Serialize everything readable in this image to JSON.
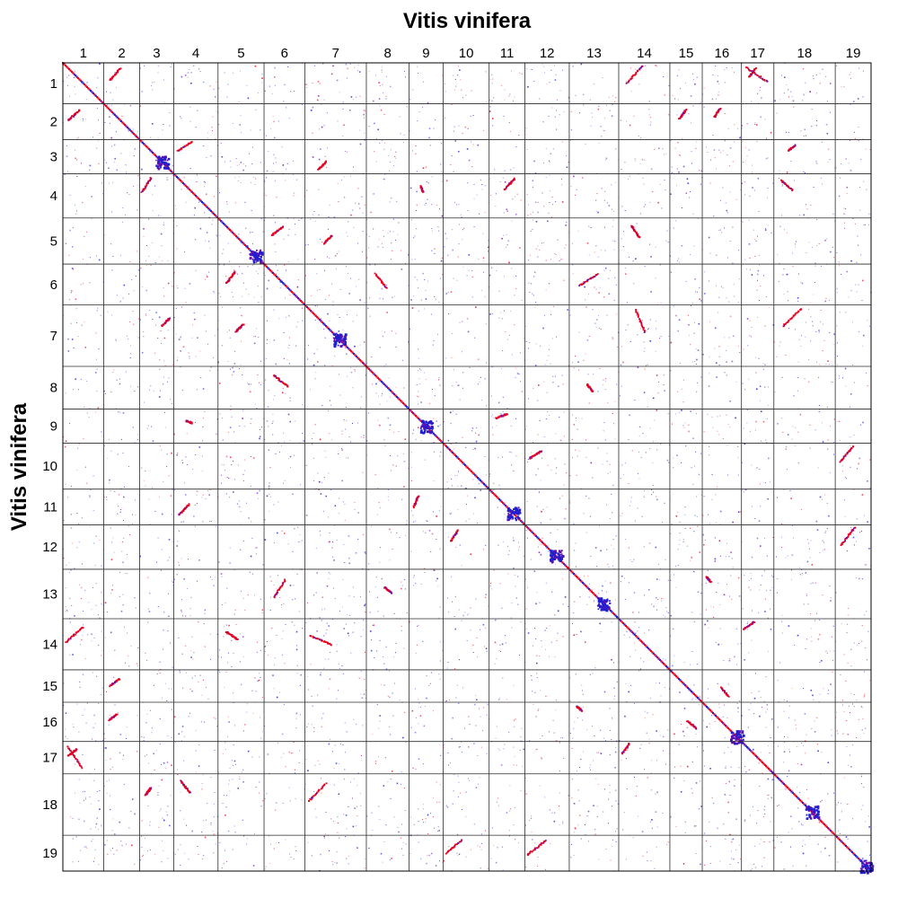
{
  "chart_data": {
    "type": "dotplot",
    "title": "Vitis vinifera",
    "xlabel": "",
    "ylabel": "Vitis vinifera",
    "chromosomes": [
      {
        "name": "1",
        "size": 24
      },
      {
        "name": "2",
        "size": 21
      },
      {
        "name": "3",
        "size": 20
      },
      {
        "name": "4",
        "size": 26
      },
      {
        "name": "5",
        "size": 27
      },
      {
        "name": "6",
        "size": 24
      },
      {
        "name": "7",
        "size": 36
      },
      {
        "name": "8",
        "size": 25
      },
      {
        "name": "9",
        "size": 20
      },
      {
        "name": "10",
        "size": 27
      },
      {
        "name": "11",
        "size": 21
      },
      {
        "name": "12",
        "size": 26
      },
      {
        "name": "13",
        "size": 29
      },
      {
        "name": "14",
        "size": 30
      },
      {
        "name": "15",
        "size": 19
      },
      {
        "name": "16",
        "size": 23
      },
      {
        "name": "17",
        "size": 19
      },
      {
        "name": "18",
        "size": 36
      },
      {
        "name": "19",
        "size": 21
      }
    ],
    "blocks": [
      {
        "x": [
          4.4,
          13.3
        ],
        "y": [
          11.4,
          1.4
        ]
      },
      {
        "x": [
          4.1,
          7.8
        ],
        "y": [
          7.8,
          2.8
        ]
      },
      {
        "x": [
          5.0,
          9.0
        ],
        "y": [
          8.5,
          3.2
        ]
      },
      {
        "x": [
          6.8,
          10.0
        ],
        "y": [
          7.2,
          2.5
        ]
      },
      {
        "x": [
          7.4,
          12.0
        ],
        "y": [
          17.2,
          12.5
        ]
      },
      {
        "x": [
          8.0,
          12.0
        ],
        "y": [
          6.0,
          3.0
        ]
      },
      {
        "x": [
          6.5,
          7.8
        ],
        "y": [
          6.8,
          10.5
        ]
      },
      {
        "x": [
          8.5,
          14.5
        ],
        "y": [
          8.8,
          2.5
        ]
      },
      {
        "x": [
          3.8,
          10.5
        ],
        "y": [
          3.5,
          9.2
        ]
      },
      {
        "x": [
          10.8,
          15.2
        ],
        "y": [
          14.5,
          10.0
        ]
      },
      {
        "x": [
          7.2,
          11.8
        ],
        "y": [
          4.2,
          11.2
        ]
      },
      {
        "x": [
          4.8,
          11.3
        ],
        "y": [
          5.2,
          13.5
        ]
      },
      {
        "x": [
          5.8,
          16.0
        ],
        "y": [
          12.0,
          5.5
        ]
      },
      {
        "x": [
          9.5,
          14.8
        ],
        "y": [
          2.5,
          15.2
        ]
      },
      {
        "x": [
          5.0,
          15.5
        ],
        "y": [
          11.8,
          1.8
        ]
      },
      {
        "x": [
          10.0,
          13.4
        ],
        "y": [
          10.2,
          14.2
        ]
      },
      {
        "x": [
          3.5,
          10.0
        ],
        "y": [
          5.0,
          2.4
        ]
      },
      {
        "x": [
          2.5,
          9.0
        ],
        "y": [
          8.5,
          4.2
        ]
      },
      {
        "x": [
          2.3,
          10.0
        ],
        "y": [
          10.5,
          1.5
        ]
      },
      {
        "x": [
          2.8,
          11.2
        ],
        "y": [
          11.5,
          0.8
        ]
      },
      {
        "x": [
          1.0,
          6.8
        ],
        "y": [
          5.8,
          1.5
        ]
      },
      {
        "x": [
          2.0,
          10.4
        ],
        "y": [
          6.2,
          0.9
        ]
      },
      {
        "x": [
          2.2,
          10.8
        ],
        "y": [
          2.3,
          15.0
        ]
      },
      {
        "x": [
          10.5,
          15.0
        ],
        "y": [
          9.8,
          15.2
        ]
      },
      {
        "x": [
          4.5,
          9.5
        ],
        "y": [
          10.8,
          4.2
        ]
      },
      {
        "x": [
          2.8,
          9.5
        ],
        "y": [
          9.2,
          3.3
        ]
      },
      {
        "x": [
          4.0,
          7.0
        ],
        "y": [
          2.0,
          4.5
        ]
      }
    ],
    "block_pairs": [
      [
        1,
        14
      ],
      [
        1,
        17
      ],
      [
        2,
        15
      ],
      [
        2,
        16
      ],
      [
        3,
        7
      ],
      [
        3,
        18
      ],
      [
        4,
        9
      ],
      [
        4,
        11
      ],
      [
        4,
        18
      ],
      [
        5,
        7
      ],
      [
        5,
        14
      ],
      [
        6,
        8
      ],
      [
        6,
        13
      ],
      [
        7,
        14
      ],
      [
        7,
        18
      ],
      [
        8,
        13
      ],
      [
        9,
        11
      ],
      [
        10,
        12
      ],
      [
        10,
        19
      ],
      [
        12,
        19
      ],
      [
        14,
        17
      ],
      [
        3,
        4
      ],
      [
        17,
        1
      ],
      [
        15,
        16
      ],
      [
        6,
        5
      ],
      [
        2,
        1
      ],
      [
        16,
        13
      ]
    ],
    "diagonal_blobs": [
      {
        "chr": "3",
        "pos": 13
      },
      {
        "chr": "5",
        "pos": 22
      },
      {
        "chr": "7",
        "pos": 20
      },
      {
        "chr": "9",
        "pos": 10
      },
      {
        "chr": "11",
        "pos": 14
      },
      {
        "chr": "12",
        "pos": 18
      },
      {
        "chr": "13",
        "pos": 20
      },
      {
        "chr": "16",
        "pos": 20
      },
      {
        "chr": "18",
        "pos": 22
      },
      {
        "chr": "19",
        "pos": 18
      }
    ],
    "colors": {
      "red": "#e8001f",
      "blue": "#1f1fd0",
      "purple": "#6a0dad",
      "grid": "#2a2a2a",
      "frame": "#000000"
    },
    "grid": true
  }
}
